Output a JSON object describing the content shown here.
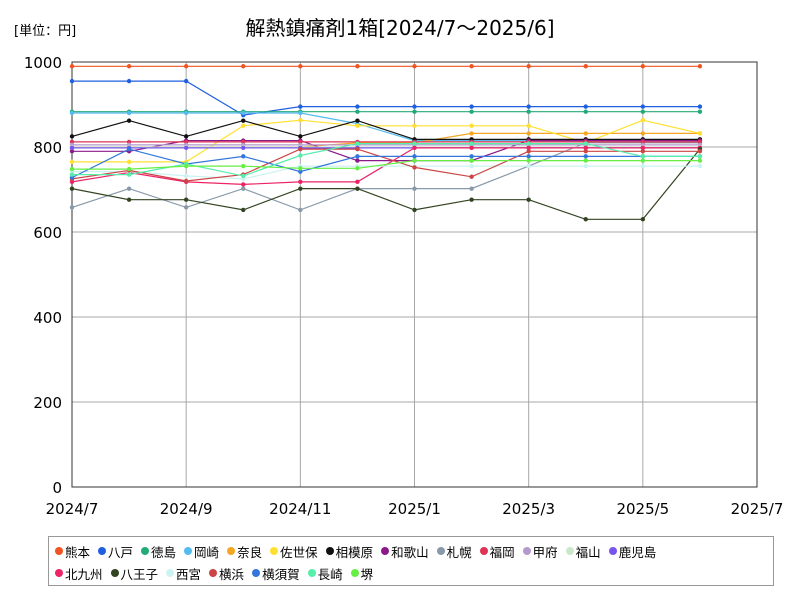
{
  "unit_label": "[単位：円]",
  "chart_data": {
    "type": "line",
    "title": "解熱鎮痛剤1箱[2024/7〜2025/6]",
    "xlabel": "",
    "ylabel": "",
    "ylim": [
      0,
      1000
    ],
    "yticks": [
      0,
      200,
      400,
      600,
      800,
      1000
    ],
    "x_tick_labels": [
      "2024/7",
      "2024/9",
      "2024/11",
      "2025/1",
      "2025/3",
      "2025/5",
      "2025/7"
    ],
    "x": [
      "2024/7",
      "2024/8",
      "2024/9",
      "2024/10",
      "2024/11",
      "2024/12",
      "2025/1",
      "2025/2",
      "2025/3",
      "2025/4",
      "2025/5",
      "2025/6"
    ],
    "grid": true,
    "legend_position": "bottom",
    "series": [
      {
        "name": "熊本",
        "color": "#ee5522",
        "values": [
          990,
          990,
          990,
          990,
          990,
          990,
          990,
          990,
          990,
          990,
          990,
          990
        ]
      },
      {
        "name": "八戸",
        "color": "#1f5fe0",
        "values": [
          955,
          955,
          955,
          875,
          895,
          895,
          895,
          895,
          895,
          895,
          895,
          895
        ]
      },
      {
        "name": "徳島",
        "color": "#22aa77",
        "values": [
          883,
          883,
          883,
          883,
          883,
          883,
          883,
          883,
          883,
          883,
          883,
          883
        ]
      },
      {
        "name": "岡崎",
        "color": "#55bbee",
        "values": [
          880,
          880,
          880,
          880,
          880,
          855,
          815,
          815,
          815,
          815,
          815,
          815
        ]
      },
      {
        "name": "奈良",
        "color": "#f5a623",
        "values": [
          800,
          800,
          800,
          800,
          800,
          810,
          810,
          832,
          832,
          832,
          832,
          832
        ]
      },
      {
        "name": "佐世保",
        "color": "#ffe030",
        "values": [
          765,
          765,
          765,
          850,
          863,
          850,
          850,
          850,
          850,
          810,
          863,
          832
        ]
      },
      {
        "name": "相模原",
        "color": "#111111",
        "values": [
          825,
          862,
          825,
          862,
          825,
          862,
          818,
          818,
          818,
          818,
          818,
          818
        ]
      },
      {
        "name": "和歌山",
        "color": "#8a1a8a",
        "values": [
          790,
          790,
          815,
          815,
          815,
          768,
          768,
          768,
          815,
          815,
          815,
          815
        ]
      },
      {
        "name": "札幌",
        "color": "#8899aa",
        "values": [
          658,
          702,
          658,
          702,
          652,
          702,
          702,
          702,
          755,
          810,
          810,
          810
        ]
      },
      {
        "name": "福岡",
        "color": "#dd3355",
        "values": [
          812,
          812,
          812,
          812,
          812,
          812,
          812,
          812,
          812,
          812,
          812,
          812
        ]
      },
      {
        "name": "甲府",
        "color": "#b399cc",
        "values": [
          805,
          805,
          805,
          805,
          805,
          805,
          805,
          805,
          805,
          805,
          805,
          805
        ]
      },
      {
        "name": "福山",
        "color": "#cce8cc",
        "values": [
          800,
          800,
          800,
          800,
          800,
          800,
          800,
          800,
          800,
          800,
          800,
          800
        ]
      },
      {
        "name": "鹿児島",
        "color": "#7755ee",
        "values": [
          798,
          798,
          798,
          798,
          798,
          798,
          798,
          798,
          798,
          798,
          798,
          798
        ]
      },
      {
        "name": "北九州",
        "color": "#ee2266",
        "values": [
          718,
          740,
          718,
          712,
          718,
          718,
          798,
          798,
          798,
          798,
          798,
          798
        ]
      },
      {
        "name": "八王子",
        "color": "#334422",
        "values": [
          702,
          676,
          676,
          652,
          702,
          702,
          652,
          676,
          676,
          630,
          630,
          795
        ]
      },
      {
        "name": "西宮",
        "color": "#ccf2f2",
        "values": [
          742,
          742,
          732,
          725,
          755,
          755,
          755,
          755,
          755,
          755,
          755,
          755
        ]
      },
      {
        "name": "横浜",
        "color": "#cc4444",
        "values": [
          725,
          745,
          720,
          735,
          795,
          795,
          752,
          730,
          790,
          790,
          790,
          790
        ]
      },
      {
        "name": "横須賀",
        "color": "#3377dd",
        "values": [
          728,
          795,
          760,
          778,
          742,
          778,
          778,
          778,
          778,
          778,
          778,
          778
        ]
      },
      {
        "name": "長崎",
        "color": "#55eeaa",
        "values": [
          735,
          735,
          760,
          732,
          780,
          808,
          808,
          808,
          808,
          808,
          778,
          778
        ]
      },
      {
        "name": "堺",
        "color": "#66ee44",
        "values": [
          748,
          748,
          755,
          755,
          750,
          750,
          768,
          768,
          768,
          768,
          768,
          768
        ]
      }
    ]
  }
}
